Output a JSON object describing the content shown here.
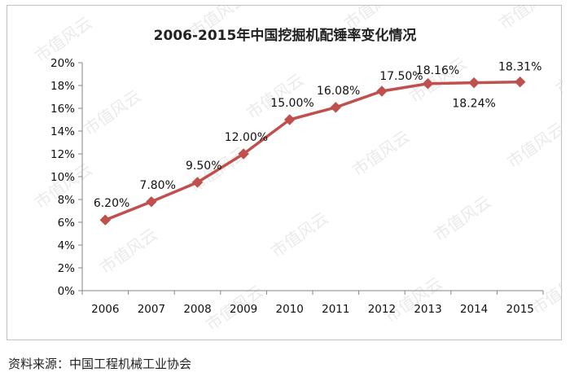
{
  "watermark": "市值风云",
  "source": "资料来源：中国工程机械工业协会",
  "colors": {
    "line": "#c0504d",
    "marker": "#c0504d",
    "axis": "#868686"
  },
  "chart_data": {
    "type": "line",
    "title": "2006-2015年中国挖掘机配锤率变化情况",
    "xlabel": "",
    "ylabel": "",
    "categories": [
      "2006",
      "2007",
      "2008",
      "2009",
      "2010",
      "2011",
      "2012",
      "2013",
      "2014",
      "2015"
    ],
    "series": [
      {
        "values": [
          6.2,
          7.8,
          9.5,
          12.0,
          15.0,
          16.08,
          17.5,
          18.16,
          18.24,
          18.31
        ]
      }
    ],
    "data_labels": [
      "6.20%",
      "7.80%",
      "9.50%",
      "12.00%",
      "15.00%",
      "16.08%",
      "17.50%",
      "18.16%",
      "18.24%",
      "18.31%"
    ],
    "y_ticks": [
      "0%",
      "2%",
      "4%",
      "6%",
      "8%",
      "10%",
      "12%",
      "14%",
      "16%",
      "18%",
      "20%"
    ],
    "ylim": [
      0,
      20
    ],
    "grid": false,
    "legend": "none",
    "marker": "diamond"
  }
}
